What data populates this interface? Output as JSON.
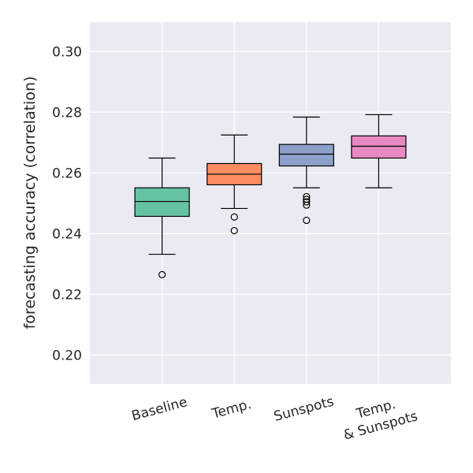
{
  "chart_data": {
    "type": "box",
    "title": "",
    "xlabel": "",
    "ylabel": "forecasting accuracy (correlation)",
    "ylim": [
      0.1905,
      0.3097
    ],
    "xlim": [
      0,
      5
    ],
    "grid": true,
    "yticks": [
      "0.20",
      "0.22",
      "0.24",
      "0.26",
      "0.28",
      "0.30"
    ],
    "ytick_values": [
      0.2,
      0.22,
      0.24,
      0.26,
      0.28,
      0.3
    ],
    "categories": [
      {
        "label_lines": [
          "Baseline"
        ]
      },
      {
        "label_lines": [
          "Temp."
        ]
      },
      {
        "label_lines": [
          "Sunspots"
        ]
      },
      {
        "label_lines": [
          "Temp.",
          "& Sunspots"
        ]
      }
    ],
    "boxes": [
      {
        "whisker_low": 0.2332,
        "q1": 0.2457,
        "median": 0.2506,
        "q3": 0.2551,
        "whisker_high": 0.2649,
        "outliers": [
          0.2265
        ],
        "color": "#66c2a5"
      },
      {
        "whisker_low": 0.2483,
        "q1": 0.2561,
        "median": 0.2596,
        "q3": 0.2631,
        "whisker_high": 0.2725,
        "outliers": [
          0.2455,
          0.241
        ],
        "color": "#fc8d62"
      },
      {
        "whisker_low": 0.2551,
        "q1": 0.2623,
        "median": 0.2662,
        "q3": 0.2694,
        "whisker_high": 0.2784,
        "outliers": [
          0.2522,
          0.2513,
          0.2505,
          0.2494,
          0.2444
        ],
        "color": "#8da0cb"
      },
      {
        "whisker_low": 0.2551,
        "q1": 0.2649,
        "median": 0.2688,
        "q3": 0.2722,
        "whisker_high": 0.2792,
        "outliers": [],
        "color": "#e78ac3"
      }
    ],
    "background": "#eaeaf2"
  }
}
